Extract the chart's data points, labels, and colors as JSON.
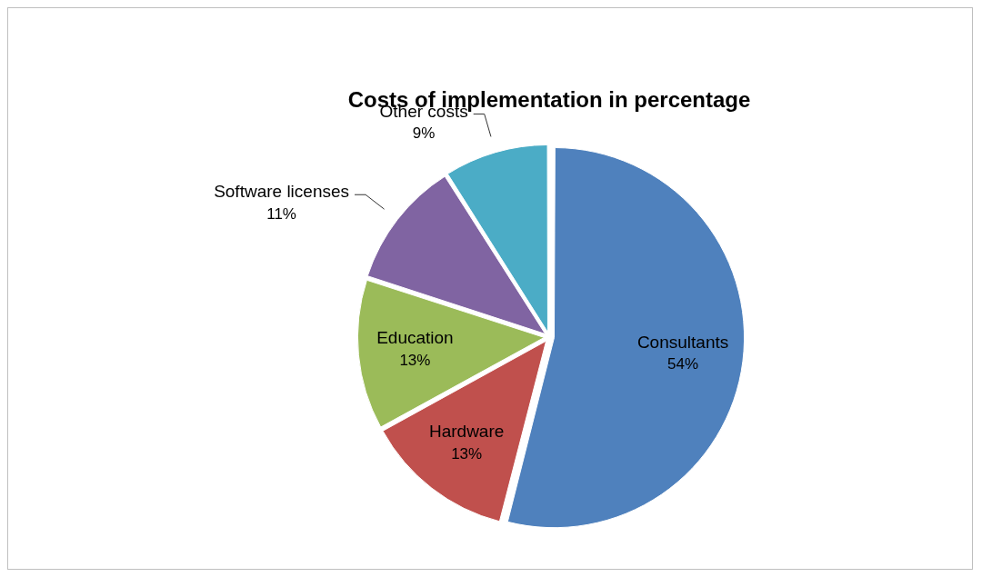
{
  "chart_data": {
    "type": "pie",
    "title": "Costs of implementation in percentage",
    "categories": [
      "Consultants",
      "Hardware",
      "Education",
      "Software licenses",
      "Other costs"
    ],
    "values": [
      54,
      13,
      13,
      11,
      9
    ],
    "colors": [
      "#4f81bd",
      "#c0504d",
      "#9bbb59",
      "#8064a2",
      "#4bacc6"
    ],
    "value_labels": [
      "54%",
      "13%",
      "13%",
      "11%",
      "9%"
    ],
    "legend": false
  }
}
